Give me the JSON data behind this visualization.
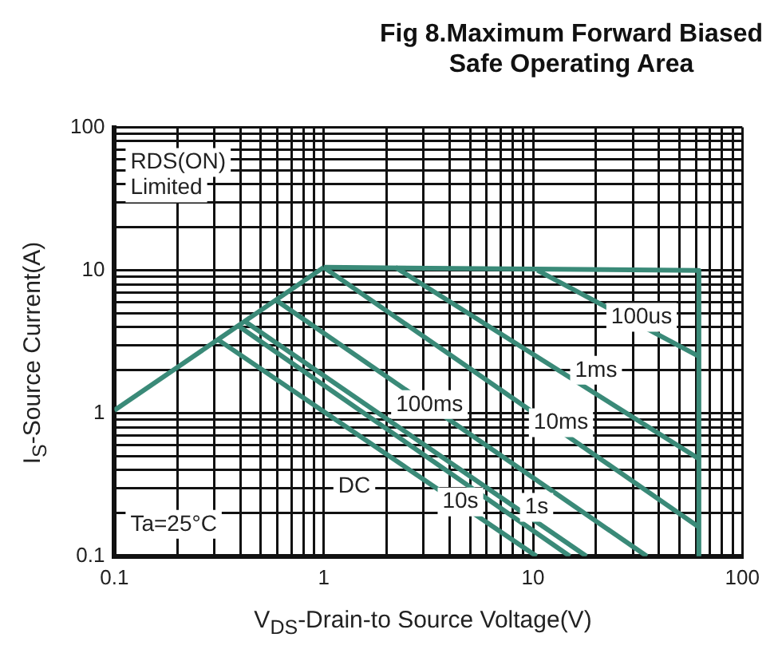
{
  "chart_data": {
    "type": "line",
    "title": "Fig 8.Maximum Forward Biased Safe Operating Area",
    "xlabel": "V$_{DS}$-Drain-to Source Voltage(V)",
    "ylabel": "I$_{S}$-Source Current(A)",
    "log": "xy",
    "grid": true,
    "legend": false,
    "marker": "none",
    "line_style": "solid",
    "xlim": [
      0.1,
      100
    ],
    "ylim": [
      0.1,
      100
    ],
    "xticks": [
      0.1,
      {
        "value": 0.2,
        "label": null
      },
      {
        "value": 0.3,
        "label": null
      },
      {
        "value": 0.4,
        "label": null
      },
      {
        "value": 0.5,
        "label": null
      },
      {
        "value": 0.6,
        "label": null
      },
      {
        "value": 0.7,
        "label": null
      },
      {
        "value": 0.8,
        "label": null
      },
      {
        "value": 0.9,
        "label": null
      },
      1,
      {
        "value": 2,
        "label": null
      },
      {
        "value": 3,
        "label": null
      },
      {
        "value": 4,
        "label": null
      },
      {
        "value": 5,
        "label": null
      },
      {
        "value": 6,
        "label": null
      },
      {
        "value": 7,
        "label": null
      },
      {
        "value": 8,
        "label": null
      },
      {
        "value": 9,
        "label": null
      },
      10,
      {
        "value": 20,
        "label": null
      },
      {
        "value": 30,
        "label": null
      },
      {
        "value": 40,
        "label": null
      },
      {
        "value": 50,
        "label": null
      },
      {
        "value": 60,
        "label": null
      },
      {
        "value": 70,
        "label": null
      },
      {
        "value": 80,
        "label": null
      },
      {
        "value": 90,
        "label": null
      },
      100
    ],
    "yticks": [
      0.1,
      {
        "value": 0.2,
        "label": null
      },
      {
        "value": 0.3,
        "label": null
      },
      {
        "value": 0.4,
        "label": null
      },
      {
        "value": 0.5,
        "label": null
      },
      {
        "value": 0.6,
        "label": null
      },
      {
        "value": 0.7,
        "label": null
      },
      {
        "value": 0.8,
        "label": null
      },
      {
        "value": 0.9,
        "label": null
      },
      1,
      {
        "value": 2,
        "label": null
      },
      {
        "value": 3,
        "label": null
      },
      {
        "value": 4,
        "label": null
      },
      {
        "value": 5,
        "label": null
      },
      {
        "value": 6,
        "label": null
      },
      {
        "value": 7,
        "label": null
      },
      {
        "value": 8,
        "label": null
      },
      {
        "value": 9,
        "label": null
      },
      10,
      {
        "value": 20,
        "label": null
      },
      {
        "value": 30,
        "label": null
      },
      {
        "value": 40,
        "label": null
      },
      {
        "value": 50,
        "label": null
      },
      {
        "value": 60,
        "label": null
      },
      {
        "value": 70,
        "label": null
      },
      {
        "value": 80,
        "label": null
      },
      {
        "value": 90,
        "label": null
      },
      100
    ],
    "series": [
      {
        "color": "#3a8a78",
        "x": [
          0.1,
          1
        ],
        "values": [
          1.05,
          10.5
        ]
      },
      {
        "color": "#3a8a78",
        "x": [
          1,
          62,
          62
        ],
        "values": [
          10.5,
          10,
          0.1
        ]
      },
      {
        "color": "#3a8a78",
        "x": [
          10.5,
          62
        ],
        "values": [
          10,
          2.5
        ]
      },
      {
        "color": "#3a8a78",
        "x": [
          2.2,
          62
        ],
        "values": [
          10.5,
          0.48
        ]
      },
      {
        "color": "#3a8a78",
        "x": [
          1,
          62
        ],
        "values": [
          10.5,
          0.16
        ]
      },
      {
        "color": "#3a8a78",
        "x": [
          0.59,
          35
        ],
        "values": [
          6.2,
          0.1
        ]
      },
      {
        "color": "#3a8a78",
        "x": [
          0.42,
          18
        ],
        "values": [
          4.4,
          0.1
        ]
      },
      {
        "color": "#3a8a78",
        "x": [
          0.39,
          15
        ],
        "values": [
          4.1,
          0.1
        ]
      },
      {
        "color": "#3a8a78",
        "x": [
          0.31,
          10.4
        ],
        "values": [
          3.3,
          0.1
        ]
      }
    ],
    "annotations": [
      "RDS(ON)\nLimited",
      {
        "text": "100us",
        "x": 33,
        "y": 4.7
      },
      {
        "text": "1ms",
        "x": 20,
        "y": 2
      },
      {
        "text": "100ms",
        "x": 3.2,
        "y": 1.15
      },
      {
        "text": "10ms",
        "x": 13.6,
        "y": 0.86
      },
      {
        "text": "DC",
        "x": 1.4,
        "y": 0.31
      },
      {
        "text": "10s",
        "x": 4.5,
        "y": 0.24
      },
      {
        "text": "1s",
        "x": 10.4,
        "y": 0.22
      },
      "Ta=25°C"
    ]
  }
}
